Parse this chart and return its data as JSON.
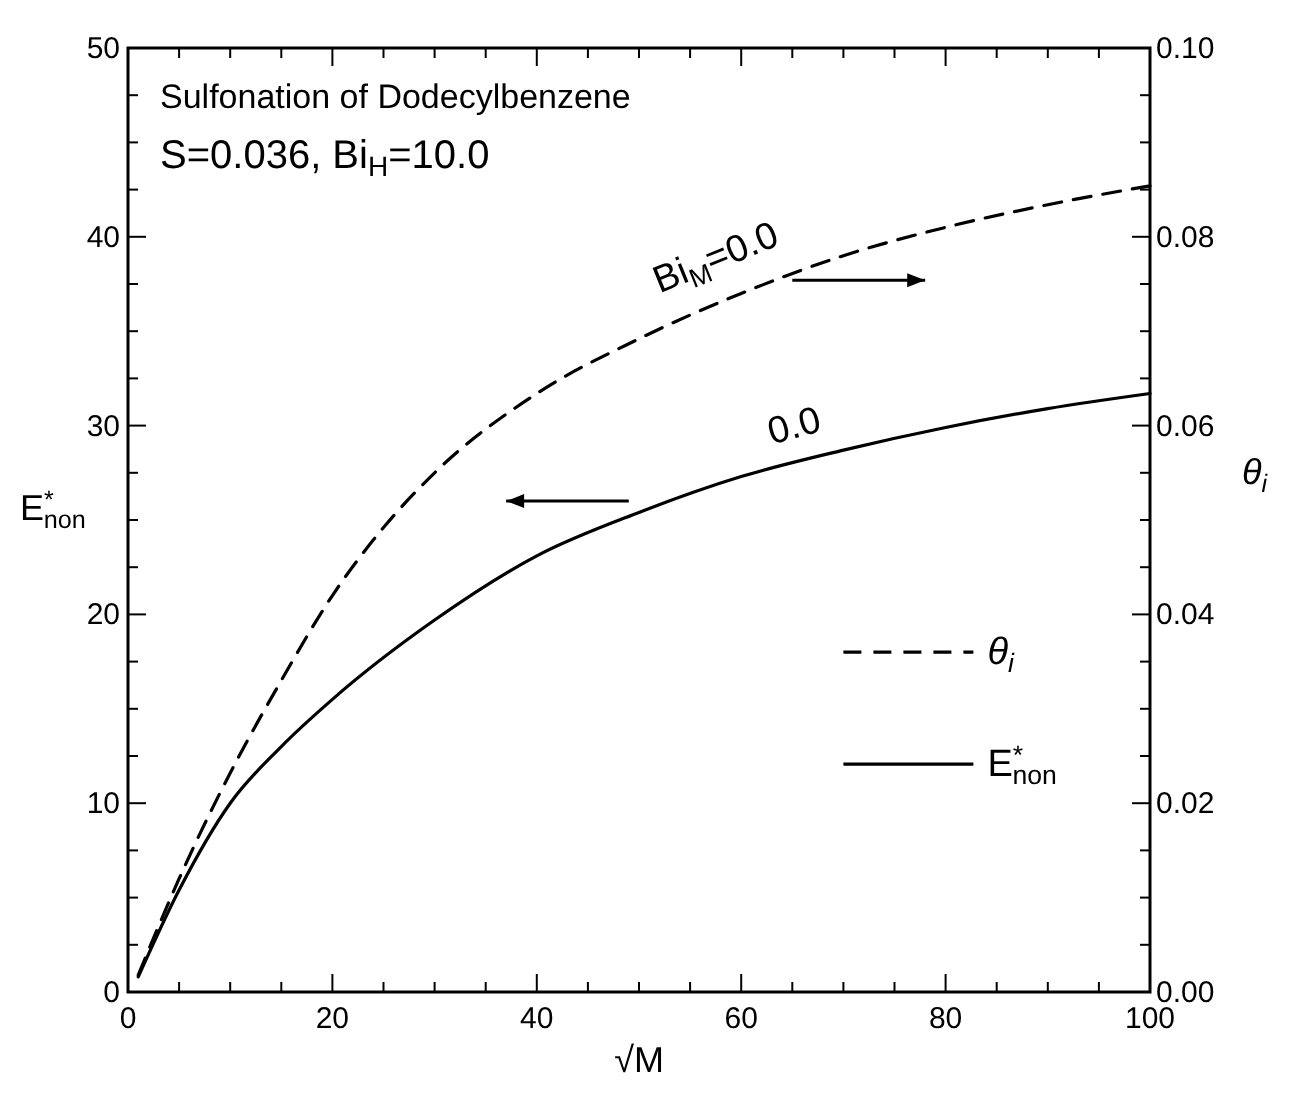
{
  "chart_data": {
    "type": "line",
    "xlabel": "√M",
    "ylabel": "E$^{*}$$_{non}$",
    "y2label": "θ$_{i}$",
    "xlim": [
      0,
      100
    ],
    "ylim": [
      0,
      50
    ],
    "y2lim": [
      0,
      0.1
    ],
    "xticks": [
      0,
      {
        "value": 5,
        "label": null
      },
      {
        "value": 10,
        "label": null
      },
      {
        "value": 15,
        "label": null
      },
      20,
      {
        "value": 25,
        "label": null
      },
      {
        "value": 30,
        "label": null
      },
      {
        "value": 35,
        "label": null
      },
      40,
      {
        "value": 45,
        "label": null
      },
      {
        "value": 50,
        "label": null
      },
      {
        "value": 55,
        "label": null
      },
      60,
      {
        "value": 65,
        "label": null
      },
      {
        "value": 70,
        "label": null
      },
      {
        "value": 75,
        "label": null
      },
      80,
      {
        "value": 85,
        "label": null
      },
      {
        "value": 90,
        "label": null
      },
      {
        "value": 95,
        "label": null
      },
      100
    ],
    "yticks": [
      0,
      {
        "value": 2.5,
        "label": null
      },
      {
        "value": 5,
        "label": null
      },
      {
        "value": 7.5,
        "label": null
      },
      10,
      {
        "value": 12.5,
        "label": null
      },
      {
        "value": 15,
        "label": null
      },
      {
        "value": 17.5,
        "label": null
      },
      20,
      {
        "value": 22.5,
        "label": null
      },
      {
        "value": 25,
        "label": null
      },
      {
        "value": 27.5,
        "label": null
      },
      30,
      {
        "value": 32.5,
        "label": null
      },
      {
        "value": 35,
        "label": null
      },
      {
        "value": 37.5,
        "label": null
      },
      40,
      {
        "value": 42.5,
        "label": null
      },
      {
        "value": 45,
        "label": null
      },
      {
        "value": 47.5,
        "label": null
      },
      50
    ],
    "y2ticks": [
      {
        "value": 0,
        "label": "0.00"
      },
      {
        "value": 0.005,
        "label": null
      },
      {
        "value": 0.01,
        "label": null
      },
      {
        "value": 0.015,
        "label": null
      },
      {
        "value": 0.02,
        "label": "0.02"
      },
      {
        "value": 0.025,
        "label": null
      },
      {
        "value": 0.03,
        "label": null
      },
      {
        "value": 0.035,
        "label": null
      },
      {
        "value": 0.04,
        "label": "0.04"
      },
      {
        "value": 0.045,
        "label": null
      },
      {
        "value": 0.05,
        "label": null
      },
      {
        "value": 0.055,
        "label": null
      },
      {
        "value": 0.06,
        "label": "0.06"
      },
      {
        "value": 0.065,
        "label": null
      },
      {
        "value": 0.07,
        "label": null
      },
      {
        "value": 0.075,
        "label": null
      },
      {
        "value": 0.08,
        "label": "0.08"
      },
      {
        "value": 0.085,
        "label": null
      },
      {
        "value": 0.09,
        "label": null
      },
      {
        "value": 0.095,
        "label": null
      },
      {
        "value": 0.1,
        "label": "0.10"
      }
    ],
    "series": [
      {
        "name": "θ$_{i}$",
        "color": "#000000",
        "axis": "y2",
        "line_style": "dashed",
        "x": [
          1,
          3,
          5,
          10,
          15,
          20,
          25,
          30,
          40,
          50,
          60,
          70,
          80,
          90,
          100
        ],
        "values": [
          0.0018,
          0.007,
          0.012,
          0.0232,
          0.033,
          0.042,
          0.0492,
          0.055,
          0.0634,
          0.0692,
          0.074,
          0.078,
          0.081,
          0.0834,
          0.0854
        ]
      },
      {
        "name": "E$^{*}$$_{non}$",
        "color": "#000000",
        "line_style": "solid",
        "x": [
          1,
          5,
          10,
          15,
          20,
          30,
          40,
          50,
          60,
          70,
          80,
          90,
          100
        ],
        "values": [
          0.8,
          5.4,
          10.0,
          13.0,
          15.5,
          19.7,
          23.1,
          25.4,
          27.3,
          28.7,
          29.9,
          30.9,
          31.7
        ]
      }
    ],
    "annotations": [
      "Sulfonation of Dodecylbenzene",
      "S=0.036,  Bi$_{H}$=10.0",
      "Bi$_{M}$=0.0",
      "0.0"
    ],
    "legend": "right"
  }
}
